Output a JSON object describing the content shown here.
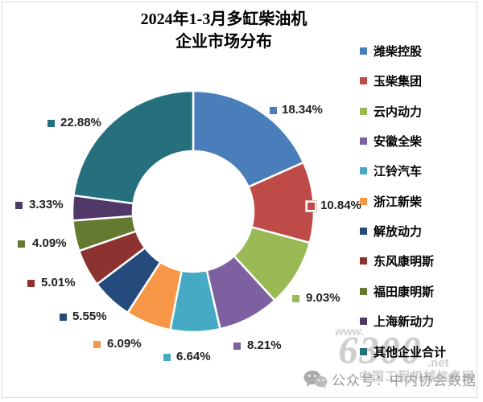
{
  "title": {
    "line1": "2024年1-3月多缸柴油机",
    "line2": "企业市场分布"
  },
  "chart_data": {
    "type": "pie",
    "subtype": "doughnut",
    "title": "2024年1-3月多缸柴油机企业市场分布",
    "unit": "percent share",
    "categories": [
      "潍柴控股",
      "玉柴集团",
      "云内动力",
      "安徽全柴",
      "江铃汽车",
      "浙江新柴",
      "解放动力",
      "东风康明斯",
      "福田康明斯",
      "上海新动力",
      "其他企业合计"
    ],
    "values": [
      18.34,
      10.84,
      9.03,
      8.21,
      6.64,
      6.09,
      5.55,
      5.01,
      4.09,
      3.33,
      22.88
    ],
    "labels": [
      "18.34%",
      "10.84%",
      "9.03%",
      "8.21%",
      "6.64%",
      "6.09%",
      "5.55%",
      "5.01%",
      "4.09%",
      "3.33%",
      "22.88%"
    ],
    "colors": [
      "#4A7EBB",
      "#BE4B48",
      "#98B954",
      "#7D60A0",
      "#46AAC5",
      "#F79646",
      "#254B7D",
      "#8C3331",
      "#637A30",
      "#503969",
      "#26707E"
    ],
    "start_angle_deg": 0,
    "direction": "clockwise",
    "hole_ratio": 0.5,
    "legend_position": "right",
    "selected_label_index": 1
  },
  "watermark": {
    "www": "www.",
    "big": "6300",
    "net": ".net",
    "caption": "中国工程机械信息网"
  },
  "footer": {
    "icon": "wechat-icon",
    "text": "公众号：中内协会数据"
  }
}
